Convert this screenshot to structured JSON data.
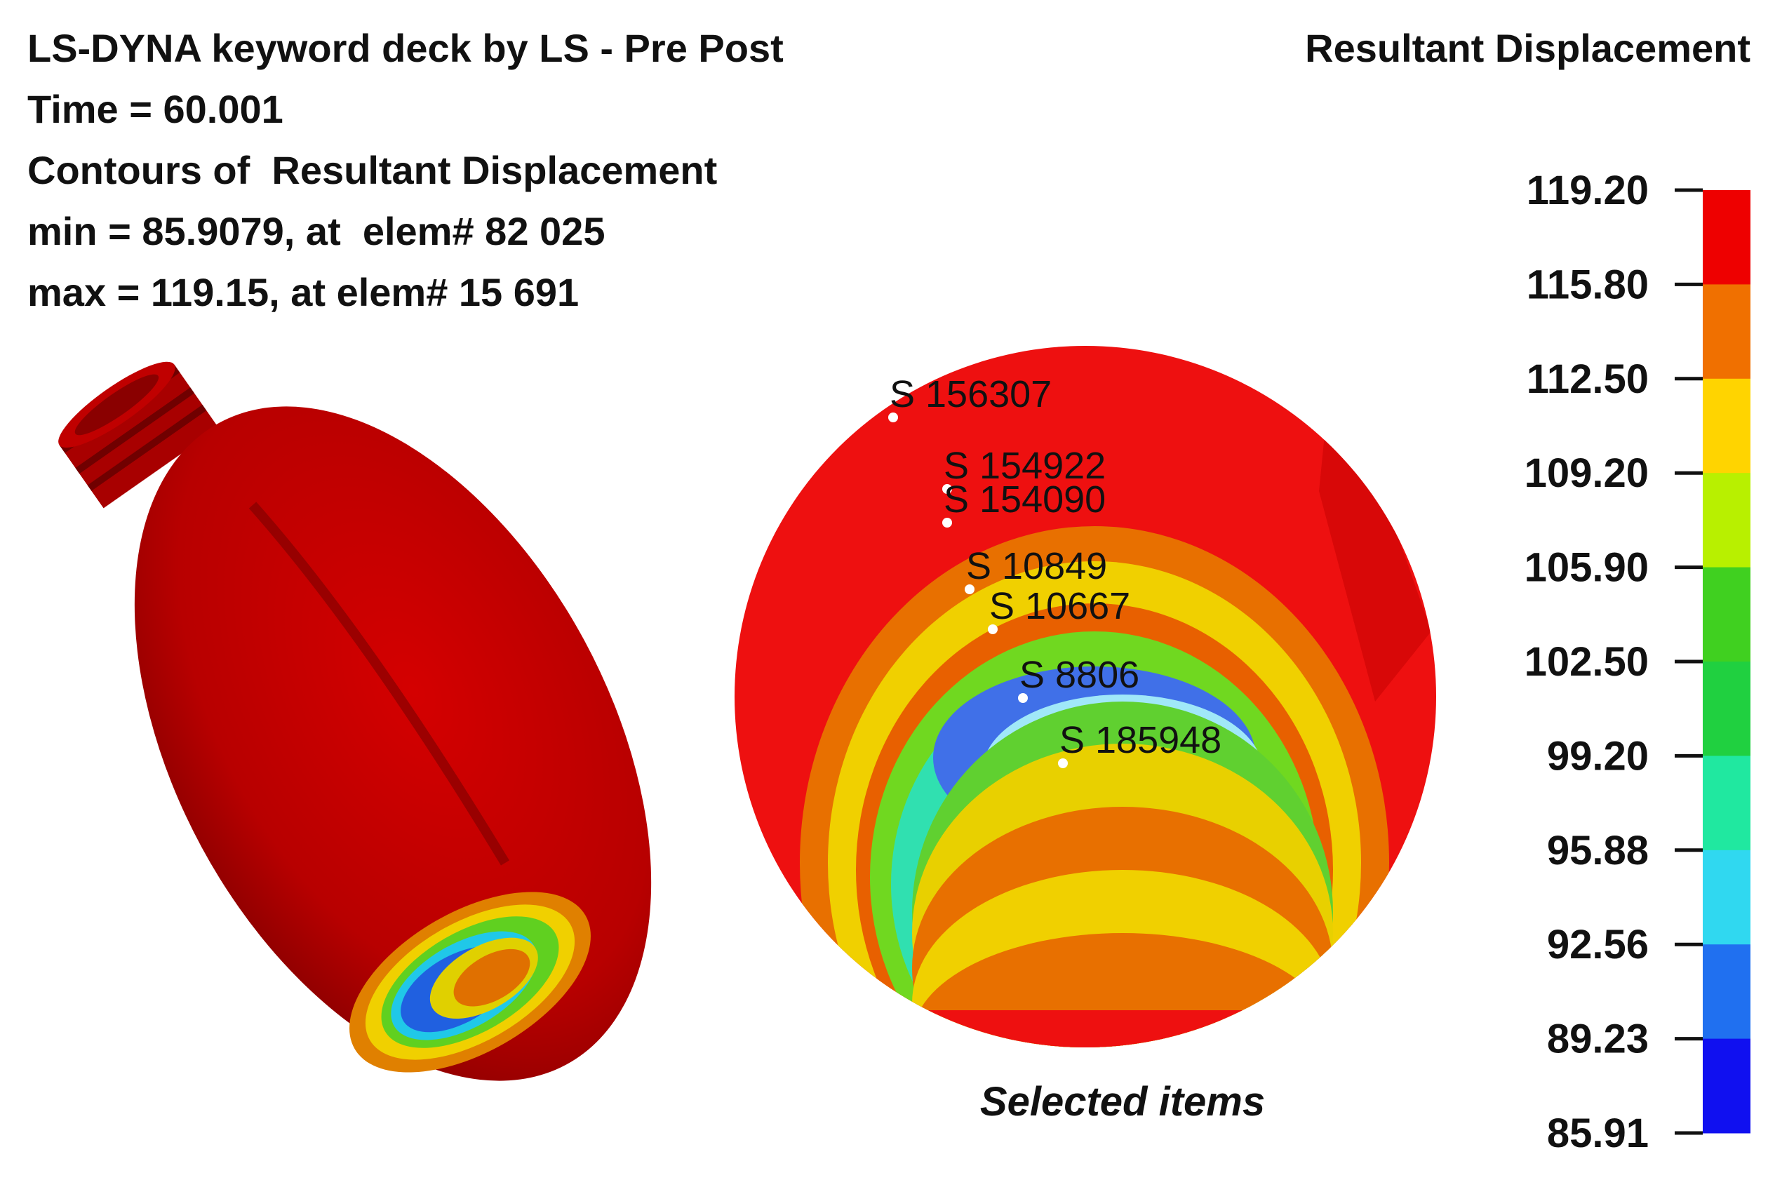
{
  "header": {
    "lines": [
      "LS-DYNA keyword deck by LS - Pre Post",
      "Time = 60.001",
      "Contours of  Resultant Displacement",
      "min = 85.9079, at  elem# 82 025",
      "max = 119.15, at elem# 15 691"
    ]
  },
  "legend": {
    "title": "Resultant Displacement",
    "labels": [
      "119.20",
      "115.80",
      "112.50",
      "109.20",
      "105.90",
      "102.50",
      "99.20",
      "95.88",
      "92.56",
      "89.23",
      "85.91"
    ]
  },
  "zoom": {
    "items": [
      "S 156307",
      "S 154922",
      "S 154090",
      "S 10849",
      "S 10667",
      "S 8806",
      "S 185948"
    ],
    "caption": "Selected items"
  }
}
